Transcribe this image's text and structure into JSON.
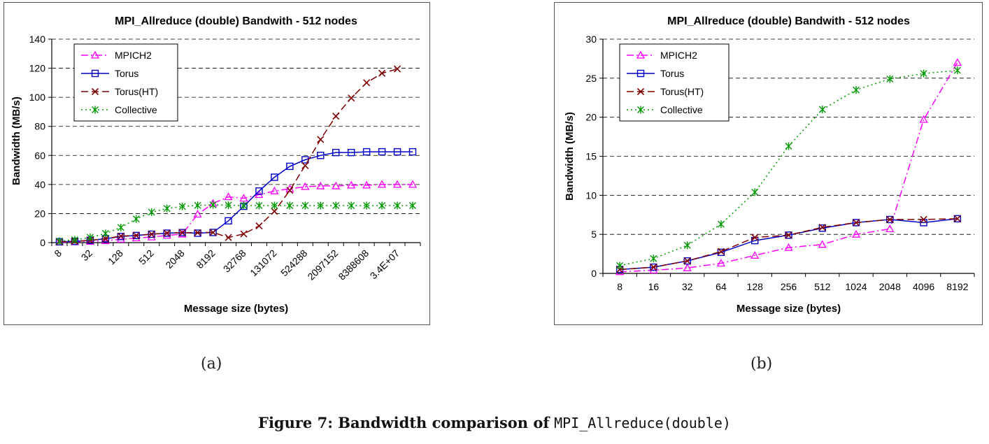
{
  "chart_data": [
    {
      "type": "line",
      "title": "MPI_Allreduce (double) Bandwith - 512 nodes",
      "xlabel": "Message size (bytes)",
      "ylabel": "Bandwidth (MB/s)",
      "ylim": [
        0,
        140
      ],
      "yticks": [
        "0",
        "20",
        "40",
        "60",
        "80",
        "100",
        "120",
        "140"
      ],
      "x": [
        "8",
        "16",
        "32",
        "64",
        "128",
        "256",
        "512",
        "1024",
        "2048",
        "4096",
        "8192",
        "16384",
        "32768",
        "65536",
        "131072",
        "262144",
        "524288",
        "1048576",
        "2097152",
        "4194304",
        "8388608",
        "16777216",
        "3.4E+07",
        "67108864"
      ],
      "xtick_labels": [
        "8",
        "32",
        "128",
        "512",
        "2048",
        "8192",
        "32768",
        "131072",
        "524288",
        "2097152",
        "8388608",
        "3.4E+07"
      ],
      "grid": "horizontal dashed",
      "legend": "top-left",
      "series": [
        {
          "name": "MPICH2",
          "color": "#ff00ff",
          "marker": "triangle",
          "dash": "dashdot",
          "values": [
            0.3,
            0.5,
            0.8,
            1.3,
            2.3,
            3.2,
            3.8,
            5.0,
            5.8,
            19.5,
            27,
            31.5,
            30.5,
            33,
            35.5,
            37,
            38.5,
            39,
            39,
            39.5,
            39.5,
            40,
            40,
            40
          ]
        },
        {
          "name": "Torus",
          "color": "#0000cc",
          "marker": "square",
          "dash": "solid",
          "values": [
            0.6,
            0.9,
            1.6,
            2.7,
            4.2,
            4.9,
            5.8,
            6.5,
            6.9,
            6.5,
            7,
            15,
            25,
            35.5,
            45,
            52.5,
            57,
            60,
            62,
            62,
            62.5,
            62.5,
            62.5,
            62.5
          ]
        },
        {
          "name": "Torus(HT)",
          "color": "#800000",
          "marker": "x",
          "dash": "dash",
          "values": [
            0.6,
            0.9,
            1.6,
            2.7,
            4.5,
            4.9,
            5.8,
            6.5,
            6.9,
            6.9,
            7,
            3.5,
            6,
            11.5,
            21.5,
            36,
            53,
            71,
            87,
            99.5,
            110,
            116.5,
            119.5,
            null
          ]
        },
        {
          "name": "Collective",
          "color": "#009900",
          "marker": "asterisk",
          "dash": "dot",
          "values": [
            1.0,
            1.9,
            3.6,
            6.3,
            10.4,
            16.3,
            21.0,
            23.5,
            24.9,
            25.6,
            26,
            25.8,
            25.5,
            25.5,
            25.5,
            25.5,
            25.5,
            25.5,
            25.5,
            25.5,
            25.5,
            25.5,
            25.5,
            25.5
          ]
        }
      ]
    },
    {
      "type": "line",
      "title": "MPI_Allreduce (double) Bandwith - 512 nodes",
      "xlabel": "Message size (bytes)",
      "ylabel": "Bandwidth (MB/s)",
      "ylim": [
        0,
        30
      ],
      "yticks": [
        "0",
        "5",
        "10",
        "15",
        "20",
        "25",
        "30"
      ],
      "x": [
        "8",
        "16",
        "32",
        "64",
        "128",
        "256",
        "512",
        "1024",
        "2048",
        "4096",
        "8192"
      ],
      "xtick_labels": [
        "8",
        "16",
        "32",
        "64",
        "128",
        "256",
        "512",
        "1024",
        "2048",
        "4096",
        "8192"
      ],
      "grid": "horizontal dashed",
      "legend": "top-left",
      "series": [
        {
          "name": "MPICH2",
          "color": "#ff00ff",
          "marker": "triangle",
          "dash": "dashdot",
          "values": [
            0.2,
            0.4,
            0.7,
            1.3,
            2.3,
            3.3,
            3.7,
            5.0,
            5.7,
            19.7,
            27.0
          ]
        },
        {
          "name": "Torus",
          "color": "#0000cc",
          "marker": "square",
          "dash": "solid",
          "values": [
            0.5,
            0.8,
            1.6,
            2.7,
            4.2,
            4.9,
            5.8,
            6.5,
            6.9,
            6.5,
            7.0
          ]
        },
        {
          "name": "Torus(HT)",
          "color": "#800000",
          "marker": "x",
          "dash": "dash",
          "values": [
            0.5,
            0.8,
            1.6,
            2.8,
            4.6,
            4.9,
            5.9,
            6.5,
            6.9,
            6.9,
            7.0
          ]
        },
        {
          "name": "Collective",
          "color": "#009900",
          "marker": "asterisk",
          "dash": "dot",
          "values": [
            1.0,
            1.9,
            3.6,
            6.3,
            10.4,
            16.3,
            21.0,
            23.5,
            24.9,
            25.6,
            26.0
          ]
        }
      ]
    }
  ],
  "subfigures": [
    "(a)",
    "(b)"
  ],
  "caption": {
    "label": "Figure 7: Bandwidth comparison of",
    "code": "MPI_Allreduce(double)"
  }
}
